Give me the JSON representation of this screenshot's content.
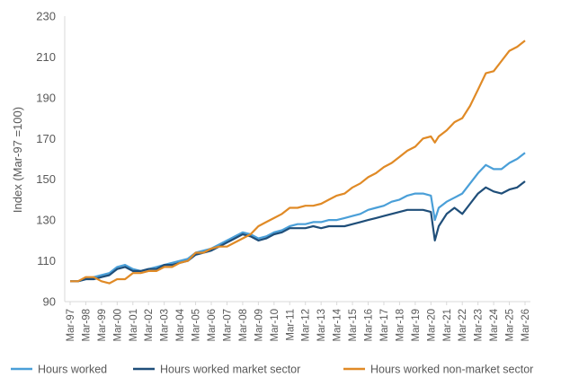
{
  "chart_data": {
    "type": "line",
    "title": "",
    "xlabel": "",
    "ylabel": "Index (Mar-97 =100)",
    "ylim": [
      90,
      230
    ],
    "yticks": [
      90,
      110,
      130,
      150,
      170,
      190,
      210,
      230
    ],
    "grid": "none",
    "legend_position": "bottom",
    "x_tick_labels": [
      "Mar-97",
      "Mar-98",
      "Mar-99",
      "Mar-00",
      "Mar-01",
      "Mar-02",
      "Mar-03",
      "Mar-04",
      "Mar-05",
      "Mar-06",
      "Mar-07",
      "Mar-08",
      "Mar-09",
      "Mar-10",
      "Mar-11",
      "Mar-12",
      "Mar-13",
      "Mar-14",
      "Mar-15",
      "Mar-16",
      "Mar-17",
      "Mar-18",
      "Mar-19",
      "Mar-20",
      "Mar-21",
      "Mar-22",
      "Mar-23",
      "Mar-24",
      "Mar-25",
      "Mar-26"
    ],
    "x": [
      "Mar-97",
      "Sep-97",
      "Mar-98",
      "Sep-98",
      "Mar-99",
      "Sep-99",
      "Mar-00",
      "Sep-00",
      "Mar-01",
      "Sep-01",
      "Mar-02",
      "Sep-02",
      "Mar-03",
      "Sep-03",
      "Mar-04",
      "Sep-04",
      "Mar-05",
      "Sep-05",
      "Mar-06",
      "Sep-06",
      "Mar-07",
      "Sep-07",
      "Mar-08",
      "Sep-08",
      "Mar-09",
      "Sep-09",
      "Mar-10",
      "Sep-10",
      "Mar-11",
      "Sep-11",
      "Mar-12",
      "Sep-12",
      "Mar-13",
      "Sep-13",
      "Mar-14",
      "Sep-14",
      "Mar-15",
      "Sep-15",
      "Mar-16",
      "Sep-16",
      "Mar-17",
      "Sep-17",
      "Mar-18",
      "Sep-18",
      "Mar-19",
      "Sep-19",
      "Mar-20",
      "Jun-20",
      "Sep-20",
      "Mar-21",
      "Sep-21",
      "Mar-22",
      "Sep-22",
      "Mar-23",
      "Sep-23",
      "Mar-24",
      "Sep-24",
      "Mar-25",
      "Sep-25",
      "Mar-26"
    ],
    "series": [
      {
        "name": "Hours worked",
        "color": "#4a9fd8",
        "values": [
          100,
          100,
          101,
          102,
          103,
          104,
          107,
          108,
          106,
          105,
          106,
          107,
          108,
          109,
          110,
          111,
          114,
          115,
          116,
          118,
          120,
          122,
          124,
          123,
          121,
          122,
          124,
          125,
          127,
          128,
          128,
          129,
          129,
          130,
          130,
          131,
          132,
          133,
          135,
          136,
          137,
          139,
          140,
          142,
          143,
          143,
          142,
          130,
          136,
          139,
          141,
          143,
          148,
          153,
          157,
          155,
          155,
          158,
          160,
          163
        ],
        "labels_on_points": false
      },
      {
        "name": "Hours worked market sector",
        "color": "#1f4e79",
        "values": [
          100,
          100,
          101,
          101,
          102,
          103,
          106,
          107,
          105,
          105,
          106,
          106,
          108,
          108,
          109,
          110,
          113,
          114,
          115,
          117,
          119,
          121,
          123,
          122,
          120,
          121,
          123,
          124,
          126,
          126,
          126,
          127,
          126,
          127,
          127,
          127,
          128,
          129,
          130,
          131,
          132,
          133,
          134,
          135,
          135,
          135,
          134,
          120,
          127,
          133,
          136,
          133,
          138,
          143,
          146,
          144,
          143,
          145,
          146,
          149
        ]
      },
      {
        "name": "Hours worked non-market sector",
        "color": "#e08a26",
        "values": [
          100,
          100,
          102,
          102,
          100,
          99,
          101,
          101,
          104,
          104,
          105,
          105,
          107,
          107,
          109,
          110,
          114,
          114,
          116,
          117,
          117,
          119,
          121,
          123,
          127,
          129,
          131,
          133,
          136,
          136,
          137,
          137,
          138,
          140,
          142,
          143,
          146,
          148,
          151,
          153,
          156,
          158,
          161,
          164,
          166,
          170,
          171,
          168,
          171,
          174,
          178,
          180,
          186,
          194,
          202,
          203,
          208,
          213,
          215,
          218
        ]
      }
    ]
  }
}
